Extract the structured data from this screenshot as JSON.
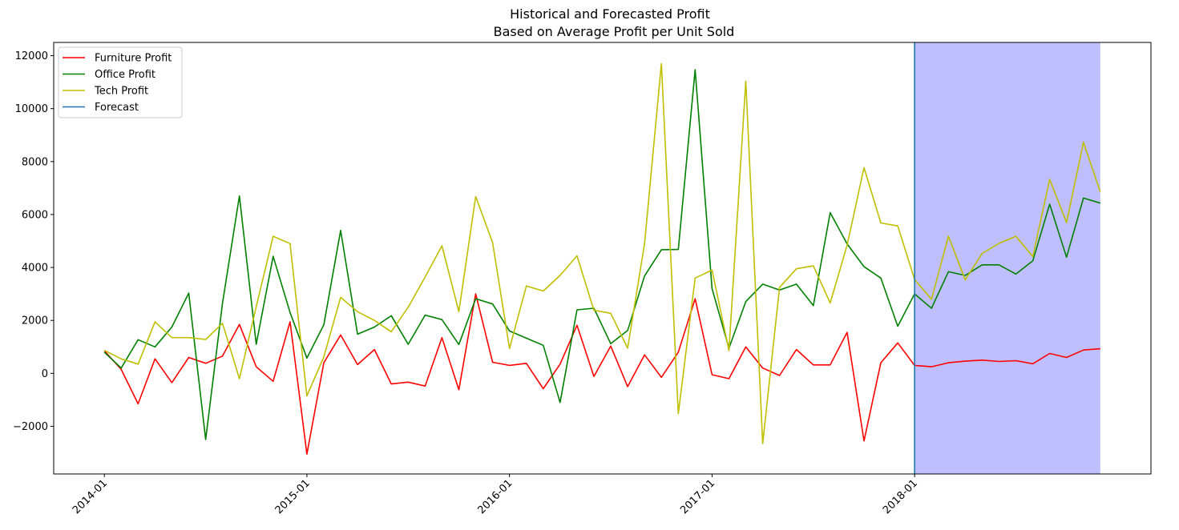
{
  "chart_data": {
    "type": "line",
    "title_line1": "Historical and Forecasted Profit",
    "title_line2": "Based on Average Profit per Unit Sold",
    "xlabel": "",
    "ylabel": "",
    "x_start": "2014-01",
    "x_months": 60,
    "xlim_months": [
      -3,
      62
    ],
    "ylim": [
      -3800,
      12500
    ],
    "yticks": [
      -2000,
      0,
      2000,
      4000,
      6000,
      8000,
      10000,
      12000
    ],
    "xtick_labels": [
      "2014-01",
      "2015-01",
      "2016-01",
      "2017-01",
      "2018-01"
    ],
    "xtick_months": [
      0,
      12,
      24,
      36,
      48
    ],
    "forecast": {
      "label": "Forecast",
      "start_month": 48,
      "end_month": 59,
      "line_color": "#1f77b4",
      "fill_color": "#bfbfff"
    },
    "legend_position": "upper-left",
    "series": [
      {
        "name": "Furniture Profit",
        "color": "#ff0000",
        "values": [
          850,
          150,
          -1150,
          550,
          -350,
          600,
          380,
          650,
          1850,
          250,
          -300,
          1950,
          -3050,
          400,
          1450,
          330,
          900,
          -400,
          -330,
          -480,
          1350,
          -620,
          3000,
          420,
          300,
          380,
          -580,
          350,
          1820,
          -120,
          1030,
          -500,
          700,
          -150,
          800,
          2820,
          -50,
          -200,
          1000,
          200,
          -80,
          900,
          320,
          320,
          1550,
          -2550,
          400,
          1150,
          300,
          250,
          400,
          460,
          500,
          450,
          480,
          360,
          750,
          600,
          880,
          930
        ]
      },
      {
        "name": "Office Profit",
        "color": "#008000",
        "values": [
          800,
          200,
          1270,
          1000,
          1750,
          3030,
          -2500,
          2650,
          6700,
          1100,
          4420,
          2300,
          580,
          1830,
          5400,
          1480,
          1750,
          2180,
          1100,
          2200,
          2030,
          1090,
          2820,
          2620,
          1600,
          1330,
          1060,
          -1100,
          2400,
          2460,
          1120,
          1620,
          3680,
          4670,
          4680,
          11470,
          3200,
          950,
          2710,
          3370,
          3150,
          3370,
          2560,
          6070,
          4890,
          4030,
          3600,
          1780,
          3000,
          2460,
          3840,
          3700,
          4100,
          4100,
          3750,
          4250,
          6390,
          4390,
          6620,
          6430
        ]
      },
      {
        "name": "Tech Profit",
        "color": "#bfbf00",
        "values": [
          870,
          550,
          350,
          1950,
          1350,
          1350,
          1280,
          1890,
          -200,
          2520,
          5180,
          4900,
          -850,
          620,
          2870,
          2330,
          2000,
          1570,
          2500,
          3640,
          4820,
          2330,
          6680,
          4940,
          940,
          3300,
          3110,
          3700,
          4440,
          2380,
          2270,
          950,
          4900,
          11700,
          -1520,
          3600,
          3900,
          860,
          11040,
          -2650,
          3250,
          3950,
          4060,
          2660,
          4840,
          7770,
          5680,
          5570,
          3550,
          2800,
          5180,
          3530,
          4530,
          4910,
          5180,
          4410,
          7330,
          5700,
          8730,
          6860
        ]
      }
    ]
  }
}
